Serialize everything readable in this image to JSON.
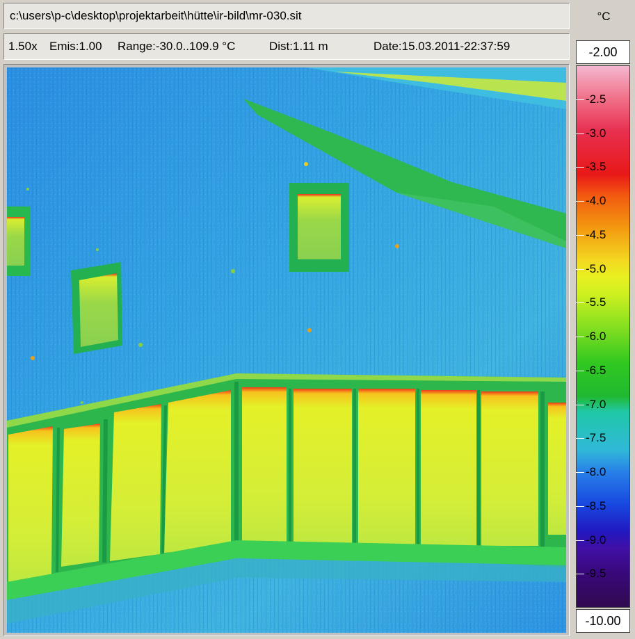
{
  "header": {
    "file_path": "c:\\users\\p-c\\desktop\\projektarbeit\\hütte\\ir-bild\\mr-030.sit",
    "zoom": "1.50x",
    "emissivity": "Emis:1.00",
    "range": "Range:-30.0..109.9 °C",
    "distance": "Dist:1.11 m",
    "date": "Date:15.03.2011-22:37:59"
  },
  "scale": {
    "unit": "°C",
    "max": "-2.00",
    "min": "-10.00",
    "ticks": [
      "-2.5",
      "-3.0",
      "-3.5",
      "-4.0",
      "-4.5",
      "-5.0",
      "-5.5",
      "-6.0",
      "-6.5",
      "-7.0",
      "-7.5",
      "-8.0",
      "-8.5",
      "-9.0",
      "-9.5"
    ]
  },
  "colors": {
    "panel_bg": "#d4d0c8",
    "wall_cold": "#2f9fe0",
    "wall_warm": "#4dbde0",
    "trim_green": "#2ec24a",
    "glass_yellow": "#d7ee34",
    "hot_edge": "#ee2a1a"
  }
}
